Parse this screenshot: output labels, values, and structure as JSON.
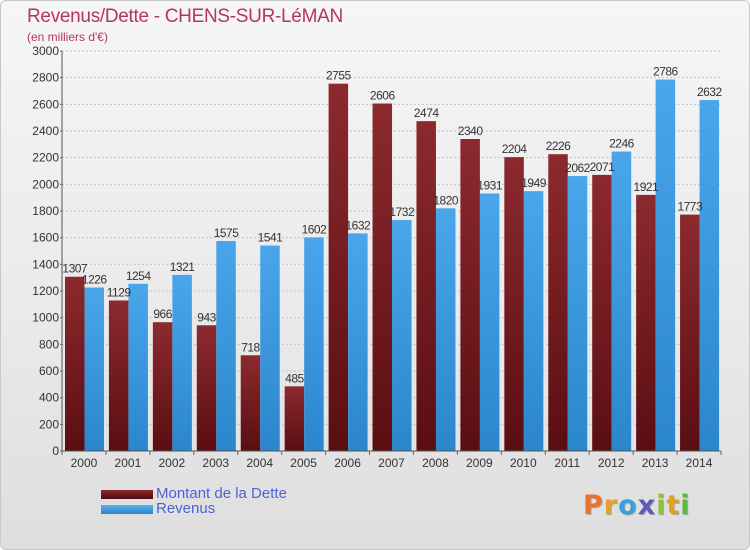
{
  "chart_data": {
    "type": "bar",
    "title": "Revenus/Dette - CHENS-SUR-LéMAN",
    "subtitle": "(en milliers d'€)",
    "categories": [
      "2000",
      "2001",
      "2002",
      "2003",
      "2004",
      "2005",
      "2006",
      "2007",
      "2008",
      "2009",
      "2010",
      "2011",
      "2012",
      "2013",
      "2014"
    ],
    "series": [
      {
        "name": "Montant de la Dette",
        "color": "#7a1f24",
        "values": [
          1307,
          1129,
          966,
          943,
          718,
          485,
          2755,
          2606,
          2474,
          2340,
          2204,
          2226,
          2071,
          1921,
          1773
        ],
        "labels": [
          "1307",
          "1129",
          "966",
          "943",
          "718",
          "485",
          "2755",
          "2606",
          "2474",
          "2340",
          "2204",
          "2226",
          "2071",
          "1921",
          "1773"
        ]
      },
      {
        "name": "Revenus",
        "color": "#3d99e0",
        "values": [
          1226,
          1254,
          1321,
          1575,
          1541,
          1602,
          1632,
          1732,
          1820,
          1931,
          1949,
          2062,
          2246,
          2786,
          2632
        ],
        "labels": [
          "1226",
          "1254",
          "1321",
          "1575",
          "1541",
          "1602",
          "1632",
          "1732",
          "1820",
          "1931",
          "1949",
          "2062",
          "2246",
          "2786",
          "2632"
        ]
      }
    ],
    "ylim": [
      0,
      3000
    ],
    "yticks": [
      "0",
      "200",
      "400",
      "600",
      "800",
      "1000",
      "1200",
      "1400",
      "1600",
      "1800",
      "2000",
      "2200",
      "2400",
      "2600",
      "2800",
      "3000"
    ],
    "grid": true,
    "legend_position": "bottom-left"
  },
  "legend": {
    "debt_label": "Montant de la Dette",
    "revenue_label": "Revenus"
  },
  "logo": {
    "letters": [
      "P",
      "r",
      "o",
      "x",
      "i",
      "t",
      "i"
    ],
    "colors": [
      "#e8732c",
      "#e9a02a",
      "#3aa0dc",
      "#5b5bbf",
      "#8cc43c",
      "#dfa21c",
      "#59b847"
    ]
  }
}
